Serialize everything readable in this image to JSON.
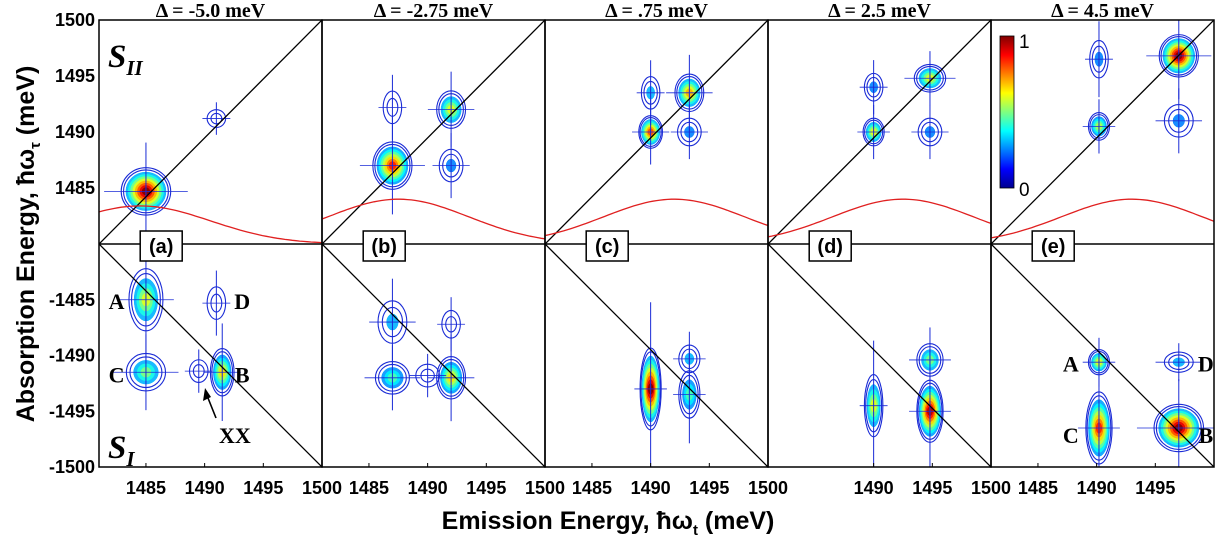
{
  "figure": {
    "xlabel": "Emission Energy, ħω",
    "xlabel_sub": "t",
    "xlabel_unit": " (meV)",
    "ylabel": "Absorption Energy, ħω",
    "ylabel_sub": "τ",
    "ylabel_unit": " (meV)",
    "upper_row_tag": "S",
    "upper_row_tag_sub": "II",
    "lower_row_tag": "S",
    "lower_row_tag_sub": "I",
    "xx_label": "XX",
    "colorbar": {
      "max_label": "1",
      "min_label": "0",
      "colormap": "jet"
    }
  },
  "chart_data": {
    "type": "heatmap",
    "xlim": [
      1481,
      1500
    ],
    "ylim_upper": [
      1480,
      1500
    ],
    "ylim_lower": [
      -1500,
      -1480
    ],
    "x_ticks": [
      1485,
      1490,
      1495,
      1500
    ],
    "x_tick_labels": [
      "1485",
      "1490",
      "1495",
      "1500"
    ],
    "y_ticks_upper": [
      1485,
      1490,
      1495,
      1500
    ],
    "y_tick_labels_upper": [
      "1485",
      "1490",
      "1495",
      "1500"
    ],
    "y_ticks_lower": [
      -1485,
      -1490,
      -1495,
      -1500
    ],
    "y_tick_labels_lower": [
      "-1485",
      "-1490",
      "-1495",
      "-1500"
    ],
    "panels": [
      {
        "id": "(a)",
        "delta": "Δ = -5.0 meV",
        "x_tick_labels": [
          "1485",
          "1490",
          "1495",
          "1500"
        ],
        "peaks_upper": [
          {
            "x": 1485,
            "y": 1484.7,
            "amp": 1.0,
            "sx": 0.9,
            "sy": 0.9
          },
          {
            "x": 1491,
            "y": 1491.2,
            "amp": 0.2,
            "sx": 0.3,
            "sy": 0.3
          }
        ],
        "peaks_lower": [
          {
            "x": 1485,
            "y": -1485,
            "amp": 0.6,
            "sx": 0.6,
            "sy": 1.2
          },
          {
            "x": 1485,
            "y": -1491.5,
            "amp": 0.5,
            "sx": 0.7,
            "sy": 0.7
          },
          {
            "x": 1491.5,
            "y": -1491.5,
            "amp": 0.65,
            "sx": 0.4,
            "sy": 0.9
          },
          {
            "x": 1491,
            "y": -1485.3,
            "amp": 0.2,
            "sx": 0.3,
            "sy": 0.6
          },
          {
            "x": 1489.5,
            "y": -1491.4,
            "amp": 0.15,
            "sx": 0.3,
            "sy": 0.4
          }
        ],
        "laser": {
          "center": 1484.5,
          "height": 0.17
        },
        "labels": [
          {
            "text": "A",
            "x": 1482.5,
            "y": -1485.2
          },
          {
            "text": "D",
            "x": 1493.2,
            "y": -1485.2
          },
          {
            "text": "C",
            "x": 1482.5,
            "y": -1491.8
          },
          {
            "text": "B",
            "x": 1493.2,
            "y": -1491.8
          }
        ]
      },
      {
        "id": "(b)",
        "delta": "Δ = -2.75 meV",
        "x_tick_labels": [
          "1485",
          "1490",
          "1495",
          "1500"
        ],
        "peaks_upper": [
          {
            "x": 1487,
            "y": 1487,
            "amp": 0.85,
            "sx": 0.7,
            "sy": 0.9
          },
          {
            "x": 1492,
            "y": 1492,
            "amp": 0.6,
            "sx": 0.5,
            "sy": 0.7
          },
          {
            "x": 1487,
            "y": 1492.2,
            "amp": 0.15,
            "sx": 0.3,
            "sy": 0.6
          },
          {
            "x": 1492,
            "y": 1487,
            "amp": 0.25,
            "sx": 0.4,
            "sy": 0.6
          }
        ],
        "peaks_lower": [
          {
            "x": 1487,
            "y": -1487,
            "amp": 0.3,
            "sx": 0.5,
            "sy": 0.8
          },
          {
            "x": 1487,
            "y": -1492,
            "amp": 0.45,
            "sx": 0.6,
            "sy": 0.6
          },
          {
            "x": 1492,
            "y": -1492,
            "amp": 0.65,
            "sx": 0.5,
            "sy": 0.8
          },
          {
            "x": 1492,
            "y": -1487.2,
            "amp": 0.15,
            "sx": 0.3,
            "sy": 0.5
          },
          {
            "x": 1490,
            "y": -1491.8,
            "amp": 0.15,
            "sx": 0.4,
            "sy": 0.4
          }
        ],
        "laser": {
          "center": 1487.5,
          "height": 0.2
        },
        "labels": []
      },
      {
        "id": "(c)",
        "delta": "Δ = .75 meV",
        "x_tick_labels": [
          "1485",
          "1490",
          "1495",
          "1500"
        ],
        "peaks_upper": [
          {
            "x": 1490,
            "y": 1490,
            "amp": 0.8,
            "sx": 0.4,
            "sy": 0.6
          },
          {
            "x": 1493.3,
            "y": 1493.5,
            "amp": 0.7,
            "sx": 0.5,
            "sy": 0.7
          },
          {
            "x": 1490,
            "y": 1493.5,
            "amp": 0.3,
            "sx": 0.3,
            "sy": 0.6
          },
          {
            "x": 1493.3,
            "y": 1490,
            "amp": 0.25,
            "sx": 0.4,
            "sy": 0.5
          }
        ],
        "peaks_lower": [
          {
            "x": 1490,
            "y": -1493,
            "amp": 1.0,
            "sx": 0.35,
            "sy": 1.6
          },
          {
            "x": 1493.3,
            "y": -1490.3,
            "amp": 0.3,
            "sx": 0.35,
            "sy": 0.5
          },
          {
            "x": 1493.3,
            "y": -1493.5,
            "amp": 0.45,
            "sx": 0.35,
            "sy": 0.9
          }
        ],
        "laser": {
          "center": 1492,
          "height": 0.2
        },
        "labels": []
      },
      {
        "id": "(d)",
        "delta": "Δ = 2.5 meV",
        "x_tick_labels": [
          "1490",
          "1495",
          "1500"
        ],
        "peaks_upper": [
          {
            "x": 1490,
            "y": 1490,
            "amp": 0.6,
            "sx": 0.35,
            "sy": 0.5
          },
          {
            "x": 1494.8,
            "y": 1494.8,
            "amp": 0.6,
            "sx": 0.55,
            "sy": 0.5
          },
          {
            "x": 1490,
            "y": 1494,
            "amp": 0.25,
            "sx": 0.3,
            "sy": 0.5
          },
          {
            "x": 1494.8,
            "y": 1490,
            "amp": 0.25,
            "sx": 0.4,
            "sy": 0.5
          }
        ],
        "peaks_lower": [
          {
            "x": 1490,
            "y": -1494.5,
            "amp": 0.6,
            "sx": 0.3,
            "sy": 1.2
          },
          {
            "x": 1494.8,
            "y": -1490.4,
            "amp": 0.5,
            "sx": 0.45,
            "sy": 0.6
          },
          {
            "x": 1494.8,
            "y": -1495,
            "amp": 0.95,
            "sx": 0.45,
            "sy": 1.2
          }
        ],
        "laser": {
          "center": 1492.5,
          "height": 0.2
        },
        "labels": []
      },
      {
        "id": "(e)",
        "delta": "Δ = 4.5 meV",
        "x_tick_labels": [
          "1485",
          "1490",
          "1495"
        ],
        "peaks_upper": [
          {
            "x": 1490.2,
            "y": 1490.5,
            "amp": 0.55,
            "sx": 0.35,
            "sy": 0.5
          },
          {
            "x": 1497,
            "y": 1496.8,
            "amp": 1.0,
            "sx": 0.7,
            "sy": 0.8
          },
          {
            "x": 1490.2,
            "y": 1496.5,
            "amp": 0.25,
            "sx": 0.3,
            "sy": 0.7
          },
          {
            "x": 1497,
            "y": 1491,
            "amp": 0.25,
            "sx": 0.5,
            "sy": 0.6
          }
        ],
        "peaks_lower": [
          {
            "x": 1490.2,
            "y": -1490.6,
            "amp": 0.6,
            "sx": 0.35,
            "sy": 0.45
          },
          {
            "x": 1497,
            "y": -1490.6,
            "amp": 0.3,
            "sx": 0.5,
            "sy": 0.35
          },
          {
            "x": 1490.2,
            "y": -1496.5,
            "amp": 0.85,
            "sx": 0.45,
            "sy": 1.4
          },
          {
            "x": 1497,
            "y": -1496.5,
            "amp": 1.0,
            "sx": 0.9,
            "sy": 0.9
          }
        ],
        "laser": {
          "center": 1493,
          "height": 0.2
        },
        "labels": [
          {
            "text": "A",
            "x": 1487.8,
            "y": -1490.8
          },
          {
            "text": "D",
            "x": 1499.3,
            "y": -1490.8
          },
          {
            "text": "C",
            "x": 1487.8,
            "y": -1497.2
          },
          {
            "text": "B",
            "x": 1499.3,
            "y": -1497.2
          }
        ]
      }
    ]
  }
}
